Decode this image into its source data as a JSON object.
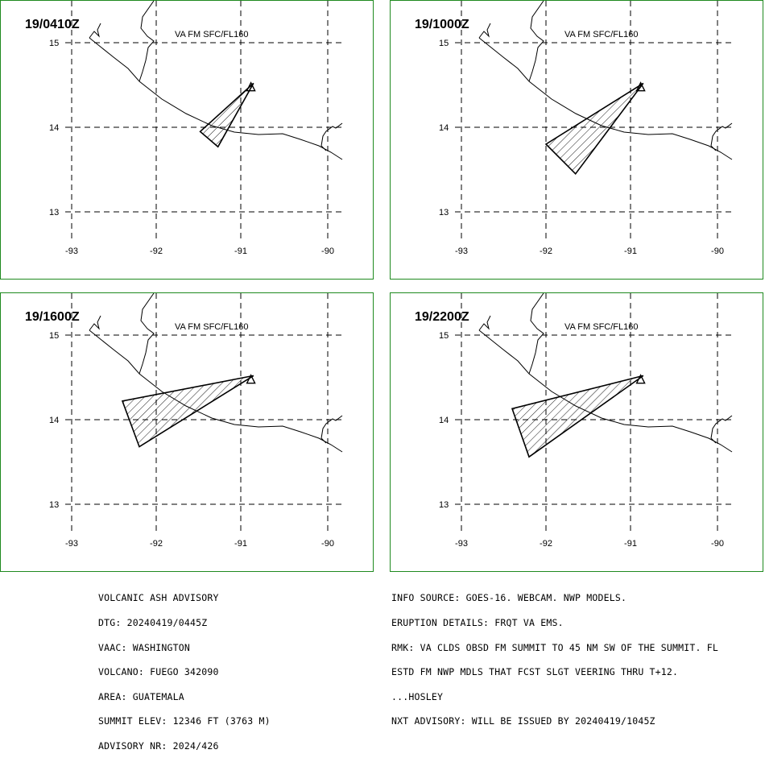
{
  "panels": [
    {
      "time": "19/0410Z",
      "label": "VA FM SFC/FL160",
      "plume": [
        [
          -90.85,
          14.52
        ],
        [
          -91.48,
          13.95
        ],
        [
          -91.27,
          13.77
        ]
      ]
    },
    {
      "time": "19/1000Z",
      "label": "VA FM SFC/FL160",
      "plume": [
        [
          -90.85,
          14.52
        ],
        [
          -92.0,
          13.8
        ],
        [
          -91.65,
          13.45
        ]
      ]
    },
    {
      "time": "19/1600Z",
      "label": "VA FM SFC/FL160",
      "plume": [
        [
          -90.85,
          14.52
        ],
        [
          -92.4,
          14.22
        ],
        [
          -92.2,
          13.68
        ]
      ]
    },
    {
      "time": "19/2200Z",
      "label": "VA FM SFC/FL160",
      "plume": [
        [
          -90.85,
          14.52
        ],
        [
          -92.4,
          14.13
        ],
        [
          -92.2,
          13.56
        ]
      ]
    }
  ],
  "axes": {
    "lon_ticks": [
      "-93",
      "-92",
      "-91",
      "-90"
    ],
    "lat_ticks": [
      "15",
      "14",
      "13"
    ]
  },
  "volcano": {
    "lon": -90.88,
    "lat": 14.47
  },
  "advisory_left": [
    "VOLCANIC ASH ADVISORY",
    "DTG: 20240419/0445Z",
    "VAAC: WASHINGTON",
    "VOLCANO: FUEGO 342090",
    "AREA: GUATEMALA",
    "SUMMIT ELEV: 12346 FT (3763 M)",
    "ADVISORY NR: 2024/426"
  ],
  "advisory_right": [
    "INFO SOURCE: GOES-16. WEBCAM. NWP MODELS.",
    "ERUPTION DETAILS: FRQT VA EMS.",
    "RMK: VA CLDS OBSD FM SUMMIT TO 45 NM SW OF THE SUMMIT. FL",
    "ESTD FM NWP MDLS THAT FCST SLGT VEERING THRU T+12.",
    "...HOSLEY",
    "NXT ADVISORY: WILL BE ISSUED BY 20240419/1045Z"
  ]
}
